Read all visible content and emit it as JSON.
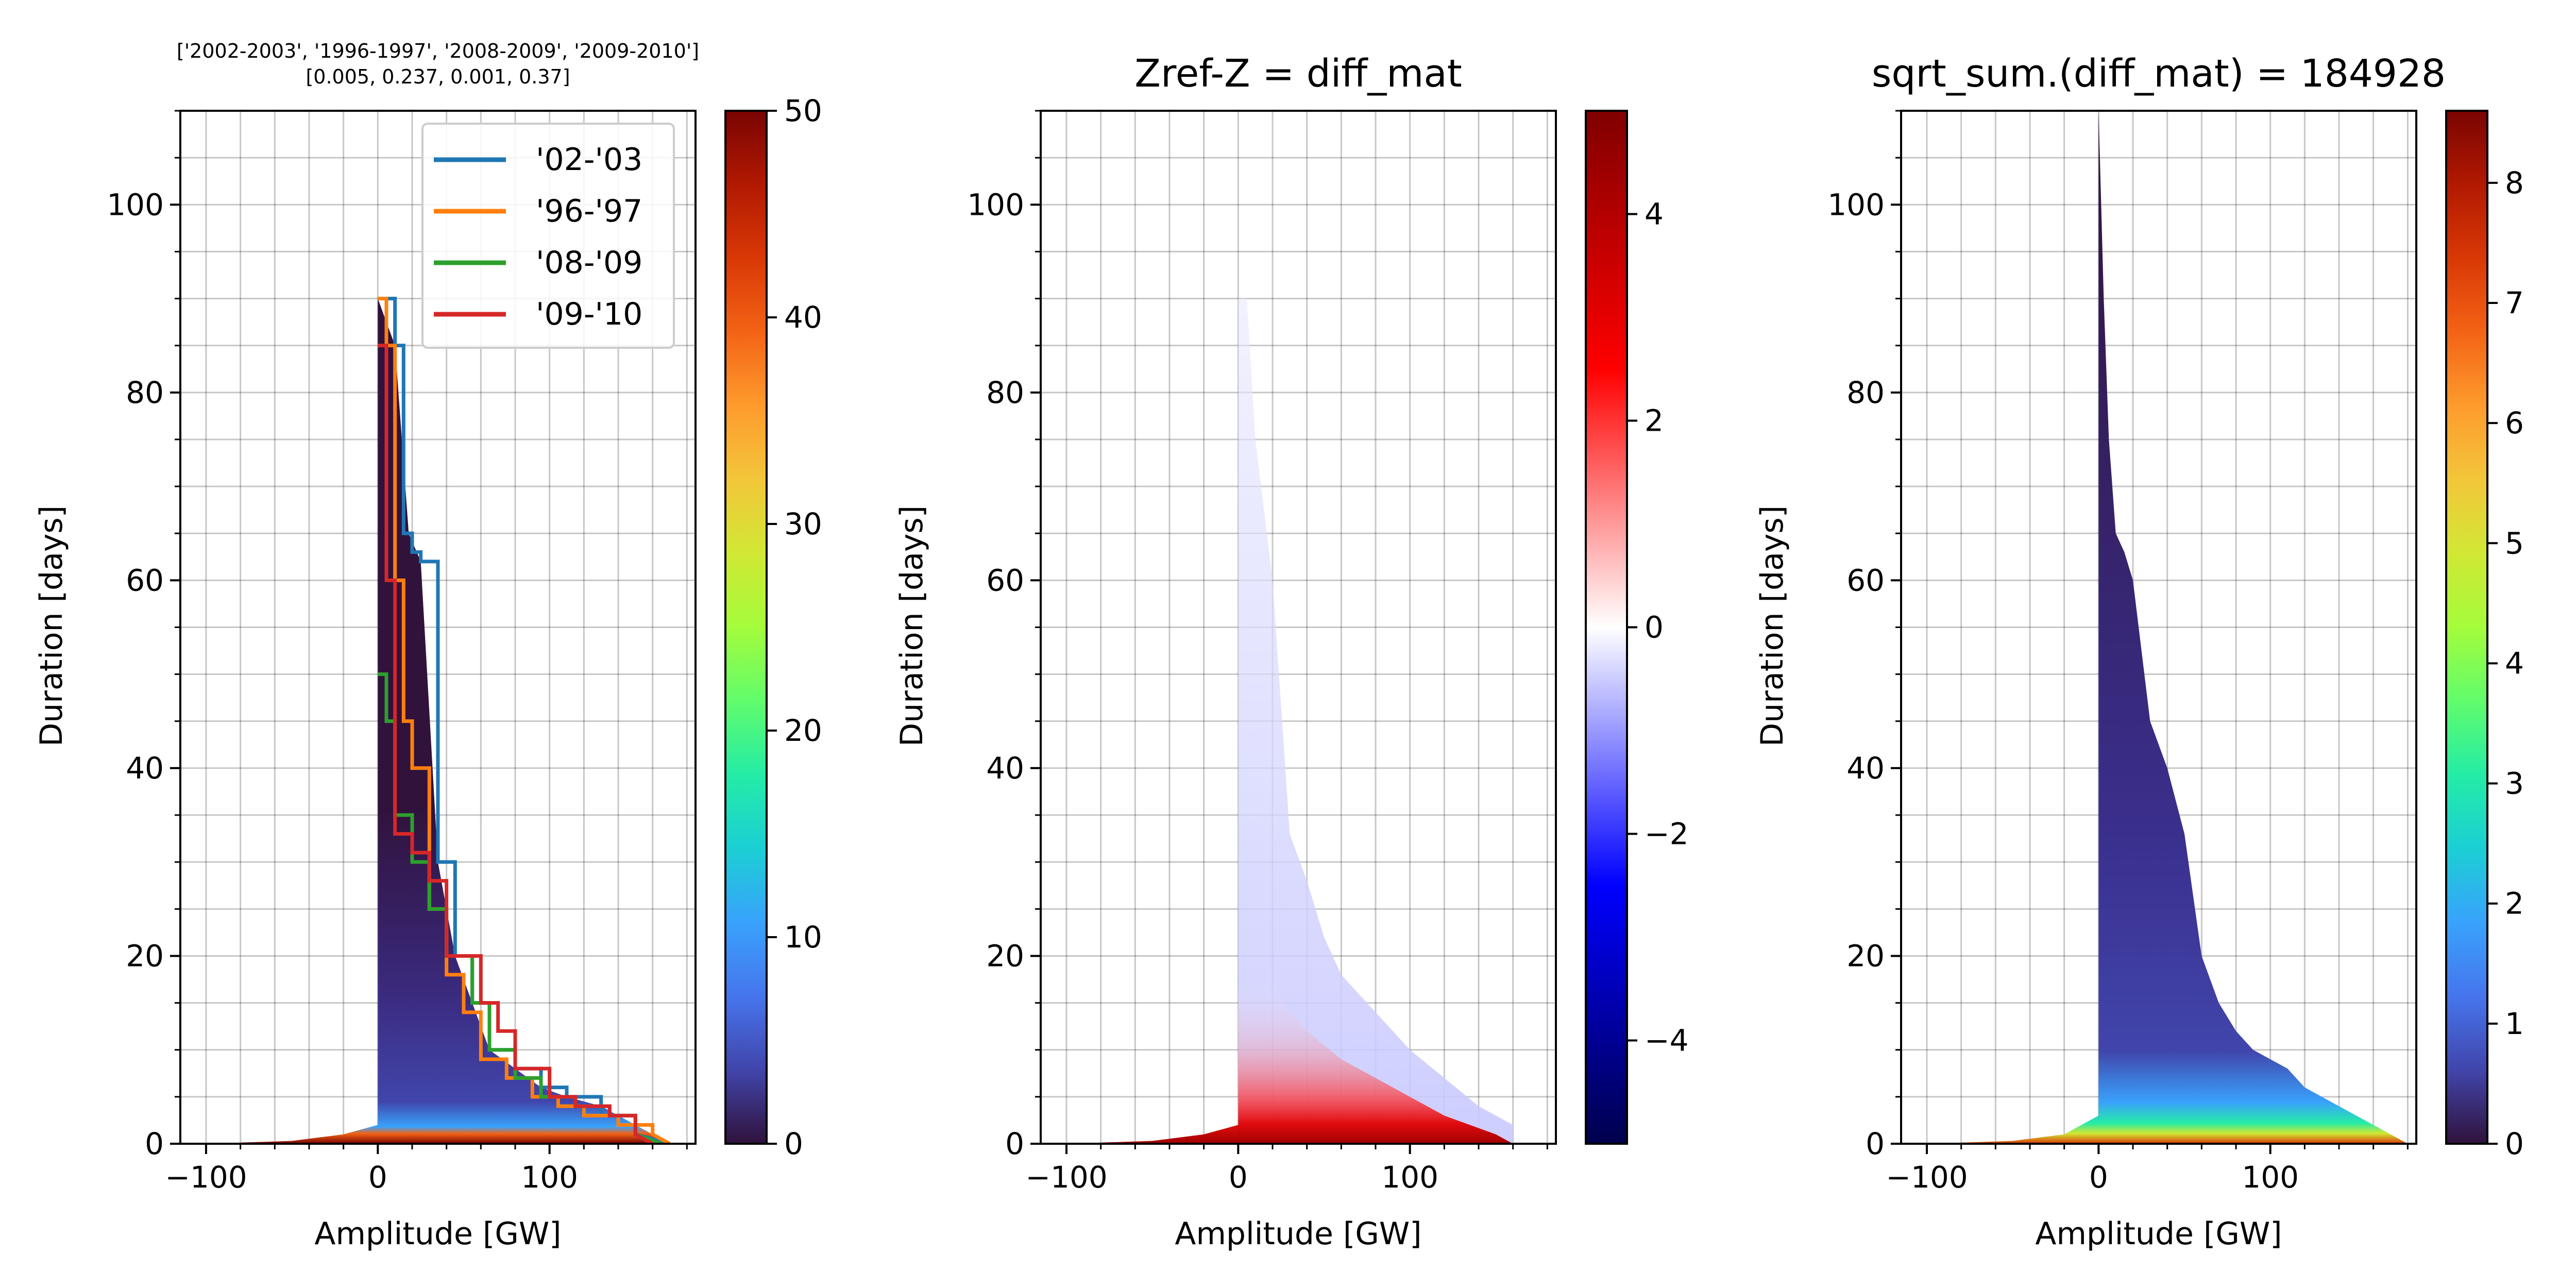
{
  "chart_data": [
    {
      "id": "panel-1",
      "type": "heatmap",
      "title_lines": [
        "['2002-2003', '1996-1997', '2008-2009', '2009-2010']",
        "[0.005, 0.237, 0.001, 0.37]"
      ],
      "xlabel": "Amplitude [GW]",
      "ylabel": "Duration [days]",
      "xlim": [
        -115,
        185
      ],
      "ylim": [
        0,
        110
      ],
      "xticks": [
        -100,
        0,
        100
      ],
      "yticks": [
        0,
        20,
        40,
        60,
        80,
        100
      ],
      "xtick_labels": [
        "−100",
        "0",
        "100"
      ],
      "ytick_labels": [
        "0",
        "20",
        "40",
        "60",
        "80",
        "100"
      ],
      "grid": true,
      "legend_position": "top-right",
      "colormap": "turbo",
      "colorbar": {
        "min": 0,
        "max": 50,
        "ticks": [
          0,
          10,
          20,
          30,
          40,
          50
        ],
        "tick_labels": [
          "0",
          "10",
          "20",
          "30",
          "40",
          "50"
        ]
      },
      "envelope": {
        "x": [
          -100,
          -50,
          -20,
          0,
          0,
          10,
          18,
          25,
          35,
          45,
          55,
          65,
          80,
          95,
          110,
          130,
          150,
          170
        ],
        "y": [
          0,
          0.3,
          1,
          2,
          90,
          85,
          65,
          62,
          30,
          20,
          15,
          10,
          8,
          6,
          5,
          4,
          2,
          0
        ]
      },
      "series": [
        {
          "name": "'02-'03",
          "color": "#1f77b4",
          "x": [
            0,
            5,
            10,
            10,
            15,
            15,
            20,
            20,
            25,
            25,
            35,
            35,
            45,
            45,
            55,
            55,
            65,
            65,
            80,
            80,
            95,
            95,
            110,
            110,
            130,
            130,
            150,
            150,
            170
          ],
          "y": [
            90,
            90,
            90,
            85,
            85,
            65,
            65,
            63,
            63,
            62,
            62,
            30,
            30,
            20,
            20,
            15,
            15,
            10,
            10,
            8,
            8,
            6,
            6,
            5,
            5,
            3,
            3,
            1,
            0
          ]
        },
        {
          "name": "'96-'97",
          "color": "#ff7f0e",
          "x": [
            0,
            5,
            5,
            10,
            10,
            15,
            15,
            20,
            20,
            30,
            30,
            40,
            40,
            50,
            50,
            60,
            60,
            75,
            75,
            90,
            90,
            105,
            105,
            120,
            120,
            140,
            140,
            160,
            160,
            170
          ],
          "y": [
            90,
            90,
            85,
            85,
            60,
            60,
            45,
            45,
            40,
            40,
            25,
            25,
            18,
            18,
            14,
            14,
            9,
            9,
            7,
            7,
            5,
            5,
            4,
            4,
            3,
            3,
            2,
            2,
            1,
            0
          ]
        },
        {
          "name": "'08-'09",
          "color": "#2ca02c",
          "x": [
            0,
            5,
            5,
            10,
            10,
            20,
            20,
            30,
            30,
            40,
            40,
            55,
            55,
            65,
            65,
            80,
            80,
            95,
            95,
            115,
            115,
            135,
            135,
            150,
            150,
            165
          ],
          "y": [
            50,
            50,
            45,
            45,
            35,
            35,
            30,
            30,
            25,
            25,
            20,
            20,
            15,
            15,
            10,
            10,
            7,
            7,
            5,
            5,
            4,
            4,
            3,
            3,
            1,
            0
          ]
        },
        {
          "name": "'09-'10",
          "color": "#d62728",
          "x": [
            0,
            5,
            5,
            10,
            10,
            20,
            20,
            30,
            30,
            40,
            40,
            60,
            60,
            70,
            70,
            80,
            80,
            100,
            100,
            115,
            115,
            135,
            135,
            150,
            150,
            160
          ],
          "y": [
            85,
            85,
            60,
            60,
            33,
            33,
            31,
            31,
            28,
            28,
            20,
            20,
            15,
            15,
            12,
            12,
            8,
            8,
            5,
            5,
            4,
            4,
            3,
            3,
            1,
            0
          ]
        }
      ]
    },
    {
      "id": "panel-2",
      "type": "heatmap",
      "title": "Zref-Z = diff_mat",
      "xlabel": "Amplitude [GW]",
      "ylabel": "Duration [days]",
      "xlim": [
        -115,
        185
      ],
      "ylim": [
        0,
        110
      ],
      "xticks": [
        -100,
        0,
        100
      ],
      "yticks": [
        0,
        20,
        40,
        60,
        80,
        100
      ],
      "xtick_labels": [
        "−100",
        "0",
        "100"
      ],
      "ytick_labels": [
        "0",
        "20",
        "40",
        "60",
        "80",
        "100"
      ],
      "grid": true,
      "colormap": "seismic",
      "colorbar": {
        "min": -5,
        "max": 5,
        "ticks": [
          -4,
          -2,
          0,
          2,
          4
        ],
        "tick_labels": [
          "−4",
          "−2",
          "0",
          "2",
          "4"
        ]
      }
    },
    {
      "id": "panel-3",
      "type": "heatmap",
      "title": "sqrt_sum.(diff_mat) = 184928",
      "xlabel": "Amplitude [GW]",
      "ylabel": "Duration [days]",
      "xlim": [
        -115,
        185
      ],
      "ylim": [
        0,
        110
      ],
      "xticks": [
        -100,
        0,
        100
      ],
      "yticks": [
        0,
        20,
        40,
        60,
        80,
        100
      ],
      "xtick_labels": [
        "−100",
        "0",
        "100"
      ],
      "ytick_labels": [
        "0",
        "20",
        "40",
        "60",
        "80",
        "100"
      ],
      "grid": true,
      "colormap": "turbo",
      "colorbar": {
        "min": 0,
        "max": 8.6,
        "ticks": [
          0,
          1,
          2,
          3,
          4,
          5,
          6,
          7,
          8
        ],
        "tick_labels": [
          "0",
          "1",
          "2",
          "3",
          "4",
          "5",
          "6",
          "7",
          "8"
        ]
      },
      "envelope": {
        "x": [
          -100,
          -50,
          -20,
          0,
          0,
          3,
          6,
          10,
          15,
          20,
          30,
          40,
          50,
          60,
          70,
          80,
          90,
          100,
          110,
          120,
          130,
          140,
          150,
          160,
          170,
          180
        ],
        "y": [
          0,
          0.3,
          1,
          3,
          110,
          90,
          75,
          65,
          63,
          60,
          45,
          40,
          33,
          20,
          15,
          12,
          10,
          9,
          8,
          6,
          5,
          4,
          3,
          2,
          1,
          0
        ]
      }
    }
  ]
}
